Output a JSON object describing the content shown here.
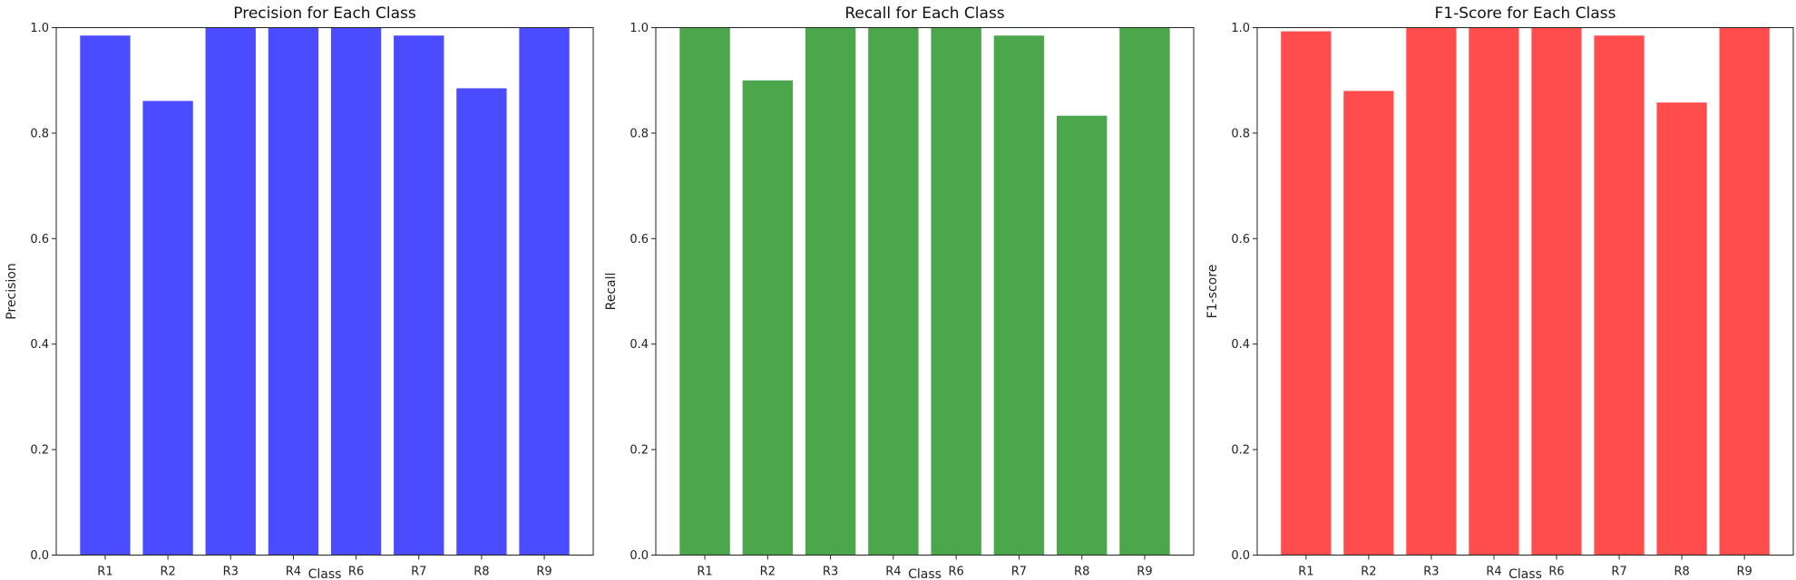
{
  "chart_data": [
    {
      "type": "bar",
      "title": "Precision for Each Class",
      "xlabel": "Class",
      "ylabel": "Precision",
      "categories": [
        "R1",
        "R2",
        "R3",
        "R4",
        "R6",
        "R7",
        "R8",
        "R9"
      ],
      "values": [
        0.985,
        0.861,
        1.0,
        1.0,
        1.0,
        0.985,
        0.885,
        1.0
      ],
      "ylim": [
        0,
        1.0
      ],
      "yticks": [
        "0.0",
        "0.2",
        "0.4",
        "0.6",
        "0.8",
        "1.0"
      ],
      "color": "#4b4bff",
      "grid": false
    },
    {
      "type": "bar",
      "title": "Recall for Each Class",
      "xlabel": "Class",
      "ylabel": "Recall",
      "categories": [
        "R1",
        "R2",
        "R3",
        "R4",
        "R6",
        "R7",
        "R8",
        "R9"
      ],
      "values": [
        1.0,
        0.9,
        1.0,
        1.0,
        1.0,
        0.985,
        0.833,
        1.0
      ],
      "ylim": [
        0,
        1.0
      ],
      "yticks": [
        "0.0",
        "0.2",
        "0.4",
        "0.6",
        "0.8",
        "1.0"
      ],
      "color": "#4ca64c",
      "grid": false
    },
    {
      "type": "bar",
      "title": "F1-Score for Each Class",
      "xlabel": "Class",
      "ylabel": "F1-score",
      "categories": [
        "R1",
        "R2",
        "R3",
        "R4",
        "R6",
        "R7",
        "R8",
        "R9"
      ],
      "values": [
        0.993,
        0.88,
        1.0,
        1.0,
        1.0,
        0.985,
        0.858,
        1.0
      ],
      "ylim": [
        0,
        1.0
      ],
      "yticks": [
        "0.0",
        "0.2",
        "0.4",
        "0.6",
        "0.8",
        "1.0"
      ],
      "color": "#ff4c4c",
      "grid": false
    }
  ]
}
